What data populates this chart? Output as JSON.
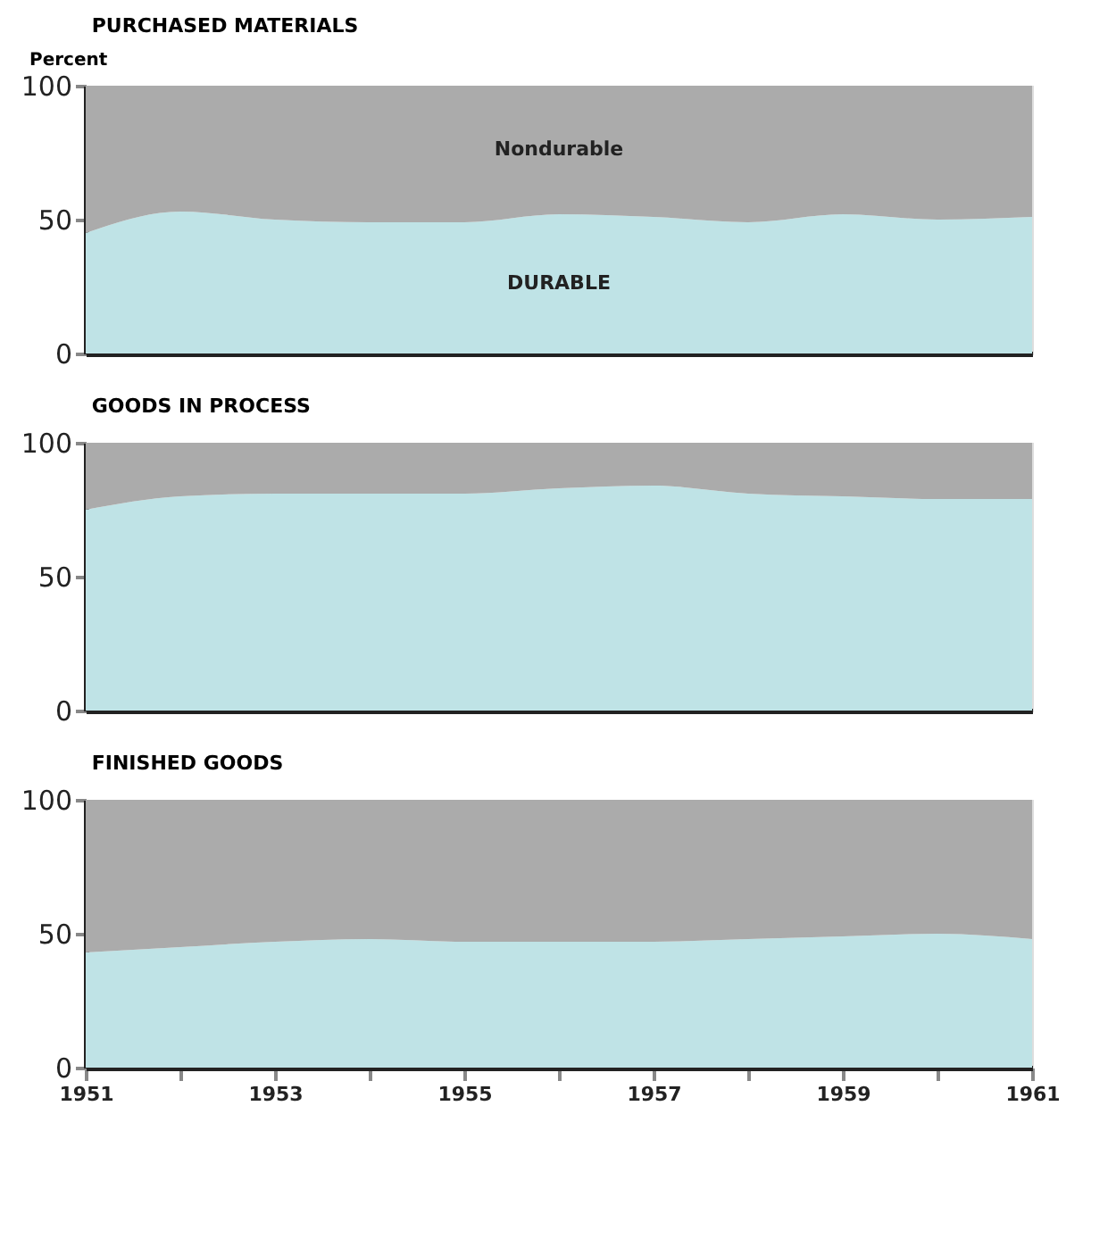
{
  "chart_data": [
    {
      "type": "area",
      "title": "PURCHASED MATERIALS",
      "ylabel": "Percent",
      "stacked": true,
      "x": [
        1951,
        1952,
        1953,
        1954,
        1955,
        1956,
        1957,
        1958,
        1959,
        1960,
        1961
      ],
      "xlim": [
        1951,
        1961
      ],
      "ylim": [
        0,
        100
      ],
      "yticks": [
        0,
        50,
        100
      ],
      "tick_labels": "y",
      "series": [
        {
          "name": "DURABLE",
          "color": "#bfe3e6",
          "values": [
            45,
            53,
            50,
            49,
            49,
            52,
            51,
            49,
            52,
            50,
            51
          ]
        },
        {
          "name": "Nondurable",
          "color": "#ababab",
          "values": [
            55,
            47,
            50,
            51,
            51,
            48,
            49,
            51,
            48,
            50,
            49
          ]
        }
      ]
    },
    {
      "type": "area",
      "title": "GOODS IN PROCESS",
      "stacked": true,
      "x": [
        1951,
        1952,
        1953,
        1954,
        1955,
        1956,
        1957,
        1958,
        1959,
        1960,
        1961
      ],
      "xlim": [
        1951,
        1961
      ],
      "ylim": [
        0,
        100
      ],
      "yticks": [
        0,
        50,
        100
      ],
      "tick_labels": "y",
      "series": [
        {
          "color": "#bfe3e6",
          "values": [
            75,
            80,
            81,
            81,
            81,
            83,
            84,
            81,
            80,
            79,
            79
          ]
        },
        {
          "color": "#ababab",
          "values": [
            25,
            20,
            19,
            19,
            19,
            17,
            16,
            19,
            20,
            21,
            21
          ]
        }
      ]
    },
    {
      "type": "area",
      "title": "FINISHED GOODS",
      "stacked": true,
      "x": [
        1951,
        1952,
        1953,
        1954,
        1955,
        1956,
        1957,
        1958,
        1959,
        1960,
        1961
      ],
      "xlim": [
        1951,
        1961
      ],
      "xticks": [
        1951,
        {
          "value": 1952,
          "label": null
        },
        1953,
        {
          "value": 1954,
          "label": null
        },
        1955,
        {
          "value": 1956,
          "label": null
        },
        1957,
        {
          "value": 1958,
          "label": null
        },
        1959,
        {
          "value": 1960,
          "label": null
        },
        1961
      ],
      "ylim": [
        0,
        100
      ],
      "yticks": [
        0,
        50,
        100
      ],
      "series": [
        {
          "color": "#bfe3e6",
          "values": [
            43,
            45,
            47,
            48,
            47,
            47,
            47,
            48,
            49,
            50,
            48
          ]
        },
        {
          "color": "#ababab",
          "values": [
            57,
            55,
            53,
            52,
            53,
            53,
            53,
            52,
            51,
            50,
            52
          ]
        }
      ]
    }
  ]
}
